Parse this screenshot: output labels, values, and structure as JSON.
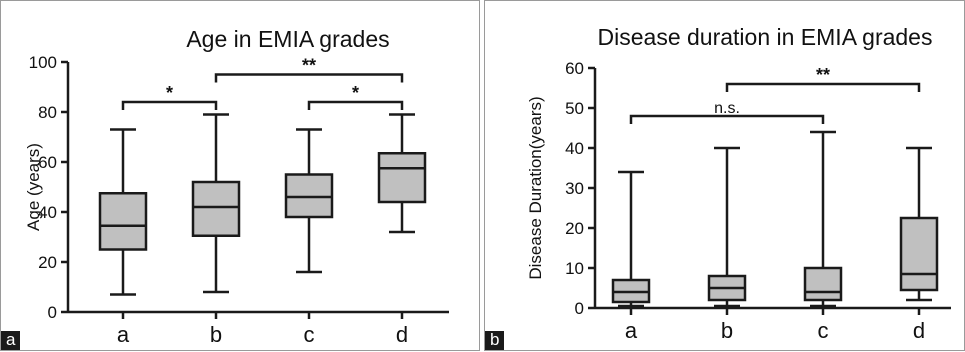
{
  "chart_data": [
    {
      "type": "box",
      "label": "a",
      "title": "Age in EMIA grades",
      "ylabel": "Age (years)",
      "ylim": [
        0,
        100
      ],
      "yticks": [
        0,
        20,
        40,
        60,
        80,
        100
      ],
      "categories": [
        "a",
        "b",
        "c",
        "d"
      ],
      "boxes": [
        {
          "min": 7,
          "q1": 25,
          "median": 34.5,
          "q3": 47.5,
          "max": 73
        },
        {
          "min": 8,
          "q1": 30.5,
          "median": 42,
          "q3": 52,
          "max": 79
        },
        {
          "min": 16,
          "q1": 38,
          "median": 46,
          "q3": 55,
          "max": 73
        },
        {
          "min": 32,
          "q1": 44,
          "median": 57.5,
          "q3": 63.5,
          "max": 79
        }
      ],
      "significance": [
        {
          "from": "a",
          "to": "b",
          "y": 84,
          "label": "*"
        },
        {
          "from": "b",
          "to": "d",
          "y": 95,
          "label": "**"
        },
        {
          "from": "c",
          "to": "d",
          "y": 84,
          "label": "*"
        }
      ]
    },
    {
      "type": "box",
      "label": "b",
      "title": "Disease duration in EMIA grades",
      "ylabel": "Disease Duration(years)",
      "ylim": [
        0,
        60
      ],
      "yticks": [
        0,
        10,
        20,
        30,
        40,
        50,
        60
      ],
      "categories": [
        "a",
        "b",
        "c",
        "d"
      ],
      "boxes": [
        {
          "min": 0.5,
          "q1": 1.5,
          "median": 4,
          "q3": 7,
          "max": 34
        },
        {
          "min": 0.5,
          "q1": 2,
          "median": 5,
          "q3": 8,
          "max": 40
        },
        {
          "min": 0.5,
          "q1": 2,
          "median": 4,
          "q3": 10,
          "max": 44
        },
        {
          "min": 2,
          "q1": 4.5,
          "median": 8.5,
          "q3": 22.5,
          "max": 40
        }
      ],
      "significance": [
        {
          "from": "a",
          "to": "c",
          "y": 48,
          "label": "n.s."
        },
        {
          "from": "b",
          "to": "d",
          "y": 56,
          "label": "**"
        }
      ]
    }
  ],
  "colors": {
    "box_fill": "#c0c0c0",
    "stroke": "#1a1a1a"
  }
}
